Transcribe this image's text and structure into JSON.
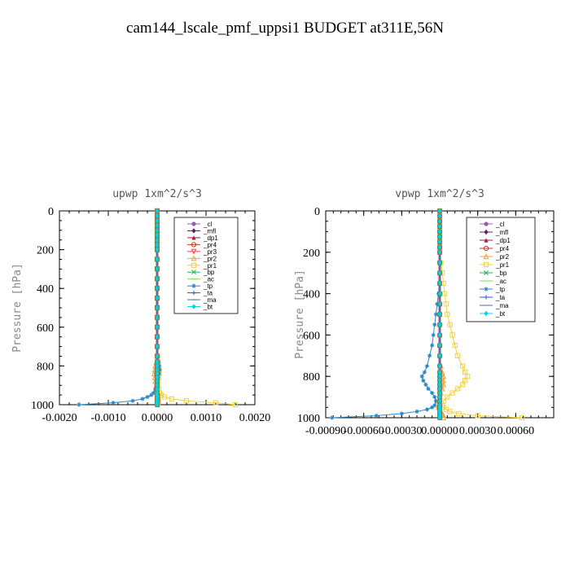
{
  "title": "cam144_lscale_pmf_uppsi1  BUDGET at311E,56N",
  "chart_data": [
    {
      "type": "line",
      "title": "upwp   1xm^2/s^3",
      "ylabel": "Pressure [hPa]",
      "xlim": [
        -0.002,
        0.002
      ],
      "ylim": [
        1000,
        0
      ],
      "xticks": [
        "-0.0020",
        "-0.0010",
        "0.0000",
        "0.0010",
        "0.0020"
      ],
      "xtick_values": [
        -0.002,
        -0.001,
        0.0,
        0.001,
        0.002
      ],
      "yticks": [
        "0",
        "200",
        "400",
        "600",
        "800",
        "1000"
      ],
      "ytick_values": [
        0,
        200,
        400,
        600,
        800,
        1000
      ],
      "legend_position": "top-right",
      "y": [
        0,
        25,
        50,
        75,
        100,
        125,
        150,
        175,
        200,
        250,
        300,
        350,
        400,
        450,
        500,
        550,
        600,
        650,
        700,
        750,
        780,
        800,
        820,
        840,
        860,
        880,
        900,
        920,
        940,
        950,
        960,
        970,
        980,
        990,
        1000
      ],
      "series": [
        {
          "name": "_cl",
          "color": "#9b59b6",
          "marker": "circle",
          "values": [
            0,
            0,
            0,
            0,
            0,
            0,
            0,
            0,
            0,
            0,
            0,
            0,
            0,
            0,
            0,
            0,
            0,
            0,
            0,
            0,
            0,
            0,
            0,
            0,
            0,
            0,
            0,
            0,
            0,
            0,
            0,
            0,
            0,
            0,
            0
          ]
        },
        {
          "name": "_mfl",
          "color": "#6a1b5a",
          "marker": "diamond",
          "values": [
            0,
            0,
            0,
            0,
            0,
            0,
            0,
            0,
            0,
            0,
            0,
            0,
            0,
            0,
            0,
            0,
            0,
            0,
            0,
            0,
            0,
            0,
            0,
            0,
            0,
            0,
            0,
            0,
            0,
            0,
            0,
            0,
            0,
            0,
            0
          ]
        },
        {
          "name": "_dp1",
          "color": "#a8124f",
          "marker": "triangle",
          "values": [
            0,
            0,
            0,
            0,
            0,
            0,
            0,
            0,
            0,
            0,
            0,
            0,
            0,
            0,
            0,
            0,
            0,
            0,
            0,
            0,
            0,
            0,
            0,
            0,
            0,
            0,
            0,
            0,
            0,
            0,
            0,
            0,
            0,
            0,
            0
          ]
        },
        {
          "name": "_pr4",
          "color": "#c0392b",
          "marker": "circle-open",
          "values": [
            0,
            0,
            0,
            0,
            0,
            0,
            0,
            0,
            0,
            0,
            0,
            0,
            0,
            0,
            0,
            0,
            0,
            0,
            0,
            0,
            0,
            0,
            0,
            0,
            0,
            0,
            0,
            0,
            0,
            0,
            0,
            0,
            0,
            0,
            0
          ]
        },
        {
          "name": "_pr3",
          "color": "#e74c3c",
          "marker": "triangle-down",
          "values": [
            0,
            0,
            0,
            0,
            0,
            0,
            0,
            0,
            0,
            0,
            0,
            0,
            0,
            0,
            0,
            0,
            0,
            0,
            0,
            0,
            0,
            0,
            0,
            0,
            0,
            0,
            0,
            0,
            0,
            0,
            0,
            0,
            0,
            0,
            0
          ]
        },
        {
          "name": "_pr2",
          "color": "#f0a030",
          "marker": "triangle-open",
          "values": [
            0,
            0,
            0,
            0,
            0,
            0,
            0,
            0,
            0,
            0,
            0,
            0,
            0,
            0,
            0,
            0,
            0,
            0,
            0,
            0,
            -2e-05,
            -4e-05,
            -5e-05,
            -6e-05,
            -5e-05,
            -4e-05,
            -2e-05,
            0,
            2e-05,
            2e-05,
            3e-05,
            3e-05,
            3e-05,
            2e-05,
            1e-05
          ]
        },
        {
          "name": "_pr1",
          "color": "#f4d03f",
          "marker": "square-open",
          "values": [
            0,
            0,
            0,
            0,
            0,
            0,
            0,
            0,
            0,
            0,
            0,
            0,
            0,
            0,
            0,
            0,
            0,
            0,
            0,
            1e-05,
            2e-05,
            3e-05,
            4e-05,
            4e-05,
            3e-05,
            2e-05,
            2e-05,
            3e-05,
            5e-05,
            8e-05,
            0.00015,
            0.0003,
            0.0006,
            0.0012,
            0.0016
          ]
        },
        {
          "name": "_bp",
          "color": "#27ae60",
          "marker": "x",
          "values": [
            0,
            0,
            0,
            0,
            0,
            0,
            0,
            0,
            0,
            0,
            0,
            0,
            0,
            0,
            0,
            0,
            0,
            0,
            0,
            0,
            0,
            0,
            0,
            0,
            0,
            0,
            0,
            0,
            0,
            0,
            0,
            0,
            0,
            0,
            0
          ]
        },
        {
          "name": "_ac",
          "color": "#7ed957",
          "marker": "dash",
          "values": [
            0,
            0,
            0,
            0,
            0,
            0,
            0,
            0,
            0,
            0,
            0,
            0,
            0,
            0,
            0,
            0,
            0,
            0,
            0,
            0,
            0,
            0,
            0,
            0,
            0,
            0,
            0,
            0,
            0,
            0,
            0,
            0,
            0,
            0,
            0
          ]
        },
        {
          "name": "_tp",
          "color": "#2e86c1",
          "marker": "star",
          "values": [
            0,
            0,
            0,
            0,
            0,
            0,
            0,
            0,
            0,
            0,
            0,
            0,
            0,
            0,
            0,
            0,
            0,
            0,
            0,
            1e-05,
            3e-05,
            4e-05,
            5e-05,
            4e-05,
            2e-05,
            0,
            -2e-05,
            -4e-05,
            -8e-05,
            -0.00012,
            -0.0002,
            -0.0003,
            -0.0005,
            -0.0009,
            -0.0016
          ]
        },
        {
          "name": "_ta",
          "color": "#2e4dd6",
          "marker": "plus",
          "values": [
            0,
            0,
            0,
            0,
            0,
            0,
            0,
            0,
            0,
            0,
            0,
            0,
            0,
            0,
            0,
            0,
            0,
            0,
            0,
            0,
            0,
            0,
            0,
            0,
            0,
            0,
            0,
            0,
            0,
            0,
            0,
            0,
            0,
            0,
            0
          ]
        },
        {
          "name": "_ma",
          "color": "#4a6fa5",
          "marker": "dash",
          "values": [
            0,
            0,
            0,
            0,
            0,
            0,
            0,
            0,
            0,
            0,
            0,
            0,
            0,
            0,
            0,
            0,
            0,
            0,
            0,
            0,
            0,
            0,
            0,
            0,
            0,
            0,
            0,
            0,
            0,
            0,
            0,
            0,
            0,
            0,
            0
          ]
        },
        {
          "name": "_bt",
          "color": "#00d4e0",
          "marker": "diamond-filled",
          "values": [
            0,
            0,
            0,
            0,
            0,
            0,
            0,
            0,
            0,
            0,
            0,
            0,
            0,
            0,
            0,
            0,
            0,
            0,
            0,
            0,
            0,
            0,
            0,
            0,
            0,
            0,
            0,
            0,
            0,
            0,
            0,
            0,
            0,
            0,
            0
          ]
        }
      ]
    },
    {
      "type": "line",
      "title": "vpwp   1xm^2/s^3",
      "ylabel": "Pressure [hPa]",
      "xlim": [
        -0.0009,
        0.0009
      ],
      "ylim": [
        1000,
        0
      ],
      "xticks": [
        "-0.00090",
        "-0.00060",
        "-0.00030",
        "0.00000",
        "0.00030",
        "0.00060"
      ],
      "xtick_values": [
        -0.0009,
        -0.0006,
        -0.0003,
        0.0,
        0.0003,
        0.0006
      ],
      "yticks": [
        "0",
        "200",
        "400",
        "600",
        "800",
        "1000"
      ],
      "ytick_values": [
        0,
        200,
        400,
        600,
        800,
        1000
      ],
      "legend_position": "top-right",
      "y": [
        0,
        25,
        50,
        75,
        100,
        125,
        150,
        175,
        200,
        250,
        300,
        350,
        400,
        450,
        500,
        550,
        600,
        650,
        700,
        750,
        780,
        800,
        820,
        840,
        860,
        880,
        900,
        920,
        940,
        950,
        960,
        970,
        980,
        990,
        1000
      ],
      "series": [
        {
          "name": "_cl",
          "color": "#9b59b6",
          "marker": "circle",
          "values": [
            0,
            0,
            0,
            0,
            0,
            0,
            0,
            0,
            0,
            0,
            0,
            0,
            0,
            0,
            0,
            0,
            0,
            0,
            0,
            0,
            0,
            0,
            0,
            0,
            0,
            0,
            0,
            0,
            0,
            0,
            0,
            0,
            0,
            0,
            0
          ]
        },
        {
          "name": "_mfl",
          "color": "#6a1b5a",
          "marker": "diamond",
          "values": [
            0,
            0,
            0,
            0,
            0,
            0,
            0,
            0,
            0,
            0,
            0,
            0,
            0,
            0,
            0,
            0,
            0,
            0,
            0,
            0,
            0,
            0,
            0,
            0,
            0,
            0,
            0,
            0,
            0,
            0,
            0,
            0,
            0,
            0,
            0
          ]
        },
        {
          "name": "_dp1",
          "color": "#a8124f",
          "marker": "triangle",
          "values": [
            0,
            0,
            0,
            0,
            0,
            0,
            0,
            0,
            0,
            0,
            0,
            0,
            0,
            0,
            0,
            0,
            0,
            0,
            0,
            0,
            0,
            0,
            0,
            0,
            0,
            0,
            0,
            0,
            0,
            0,
            0,
            0,
            0,
            0,
            0
          ]
        },
        {
          "name": "_pr4",
          "color": "#c0392b",
          "marker": "circle-open",
          "values": [
            0,
            0,
            0,
            0,
            0,
            0,
            0,
            0,
            0,
            0,
            0,
            0,
            0,
            0,
            0,
            0,
            0,
            0,
            0,
            0,
            0,
            0,
            0,
            0,
            0,
            0,
            0,
            0,
            0,
            0,
            0,
            0,
            0,
            0,
            0
          ]
        },
        {
          "name": "_pr2",
          "color": "#f0a030",
          "marker": "triangle-open",
          "values": [
            0,
            0,
            0,
            0,
            0,
            0,
            0,
            0,
            0,
            0,
            0,
            0,
            0,
            0,
            0,
            0,
            0,
            0,
            0,
            1e-05,
            2e-05,
            3e-05,
            3e-05,
            3e-05,
            2e-05,
            1e-05,
            0,
            -1e-05,
            -1e-05,
            -1e-05,
            0,
            1e-05,
            2e-05,
            3e-05,
            3e-05
          ]
        },
        {
          "name": "_pr1",
          "color": "#f4d03f",
          "marker": "square-open",
          "values": [
            0,
            0,
            0,
            0,
            0,
            0,
            0,
            0,
            0,
            1e-05,
            2e-05,
            3e-05,
            4e-05,
            5e-05,
            6e-05,
            8e-05,
            0.0001,
            0.00012,
            0.00014,
            0.00018,
            0.0002,
            0.00022,
            0.0002,
            0.00018,
            0.00014,
            0.0001,
            6e-05,
            3e-05,
            2e-05,
            3e-05,
            5e-05,
            8e-05,
            0.00015,
            0.0003,
            0.00065
          ]
        },
        {
          "name": "_bp",
          "color": "#27ae60",
          "marker": "x",
          "values": [
            0,
            0,
            0,
            0,
            0,
            0,
            0,
            0,
            0,
            0,
            0,
            0,
            0,
            0,
            0,
            0,
            0,
            0,
            0,
            0,
            0,
            0,
            0,
            0,
            0,
            0,
            0,
            0,
            0,
            0,
            0,
            0,
            0,
            0,
            0
          ]
        },
        {
          "name": "_ac",
          "color": "#7ed957",
          "marker": "dash",
          "values": [
            0,
            0,
            0,
            0,
            0,
            0,
            0,
            0,
            0,
            0,
            0,
            0,
            0,
            0,
            0,
            0,
            0,
            0,
            0,
            0,
            0,
            0,
            0,
            0,
            0,
            0,
            0,
            0,
            0,
            0,
            0,
            0,
            0,
            0,
            0
          ]
        },
        {
          "name": "_tp",
          "color": "#2e86c1",
          "marker": "star",
          "values": [
            0,
            0,
            0,
            0,
            0,
            0,
            0,
            0,
            0,
            0,
            0,
            0,
            -1e-05,
            -2e-05,
            -3e-05,
            -4e-05,
            -5e-05,
            -6e-05,
            -8e-05,
            -0.0001,
            -0.00012,
            -0.00014,
            -0.00013,
            -0.00011,
            -9e-05,
            -6e-05,
            -4e-05,
            -3e-05,
            -4e-05,
            -6e-05,
            -0.0001,
            -0.00018,
            -0.0003,
            -0.0005,
            -0.00085
          ]
        },
        {
          "name": "_ta",
          "color": "#2e4dd6",
          "marker": "plus",
          "values": [
            0,
            0,
            0,
            0,
            0,
            0,
            0,
            0,
            0,
            0,
            0,
            0,
            0,
            0,
            0,
            0,
            0,
            0,
            0,
            0,
            0,
            0,
            0,
            0,
            0,
            0,
            0,
            0,
            0,
            0,
            0,
            0,
            0,
            0,
            0
          ]
        },
        {
          "name": "_ma",
          "color": "#4a6fa5",
          "marker": "dash",
          "values": [
            0,
            0,
            0,
            0,
            0,
            0,
            0,
            0,
            0,
            0,
            0,
            0,
            0,
            0,
            0,
            0,
            0,
            0,
            0,
            0,
            0,
            0,
            0,
            0,
            0,
            0,
            0,
            0,
            0,
            0,
            0,
            0,
            0,
            0,
            0
          ]
        },
        {
          "name": "_bt",
          "color": "#00d4e0",
          "marker": "diamond-filled",
          "values": [
            0,
            0,
            0,
            0,
            0,
            0,
            0,
            0,
            0,
            0,
            0,
            0,
            0,
            0,
            0,
            0,
            0,
            0,
            0,
            0,
            0,
            0,
            0,
            0,
            0,
            0,
            0,
            0,
            0,
            0,
            0,
            0,
            0,
            0,
            0
          ]
        }
      ]
    }
  ]
}
